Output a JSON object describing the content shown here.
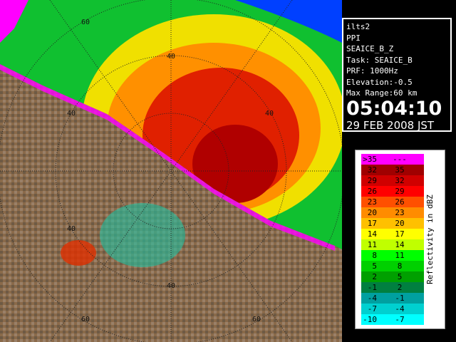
{
  "info": {
    "lines": [
      "ilts2",
      "PPI",
      "SEAICE_B_Z",
      "Task: SEAICE_B",
      "PRF: 1000Hz",
      "Elevation:-0.5",
      "Max Range:60 km"
    ],
    "time": "05:04:10",
    "date": "29 FEB 2008 JST"
  },
  "legend": {
    "title": "Reflectivity in dBZ",
    "rows": [
      {
        "low": ">35",
        "high": "---",
        "color": "#ff00ff"
      },
      {
        "low": "32",
        "high": "35",
        "color": "#a00000"
      },
      {
        "low": "29",
        "high": "32",
        "color": "#d00000"
      },
      {
        "low": "26",
        "high": "29",
        "color": "#ff0000"
      },
      {
        "low": "23",
        "high": "26",
        "color": "#ff5000"
      },
      {
        "low": "20",
        "high": "23",
        "color": "#ff8c00"
      },
      {
        "low": "17",
        "high": "20",
        "color": "#ffc000"
      },
      {
        "low": "14",
        "high": "17",
        "color": "#ffff00"
      },
      {
        "low": "11",
        "high": "14",
        "color": "#c0ff00"
      },
      {
        "low": "8",
        "high": "11",
        "color": "#00ff00"
      },
      {
        "low": "5",
        "high": "8",
        "color": "#00d000"
      },
      {
        "low": "2",
        "high": "5",
        "color": "#00a000"
      },
      {
        "low": "-1",
        "high": "2",
        "color": "#008040"
      },
      {
        "low": "-4",
        "high": "-1",
        "color": "#00a0a0"
      },
      {
        "low": "-7",
        "high": "-4",
        "color": "#00d0d0"
      },
      {
        "low": "-10",
        "high": "-7",
        "color": "#00ffff"
      }
    ]
  },
  "range_labels": [
    "60",
    "40",
    "40",
    "40",
    "40",
    "40",
    "60",
    "60"
  ]
}
